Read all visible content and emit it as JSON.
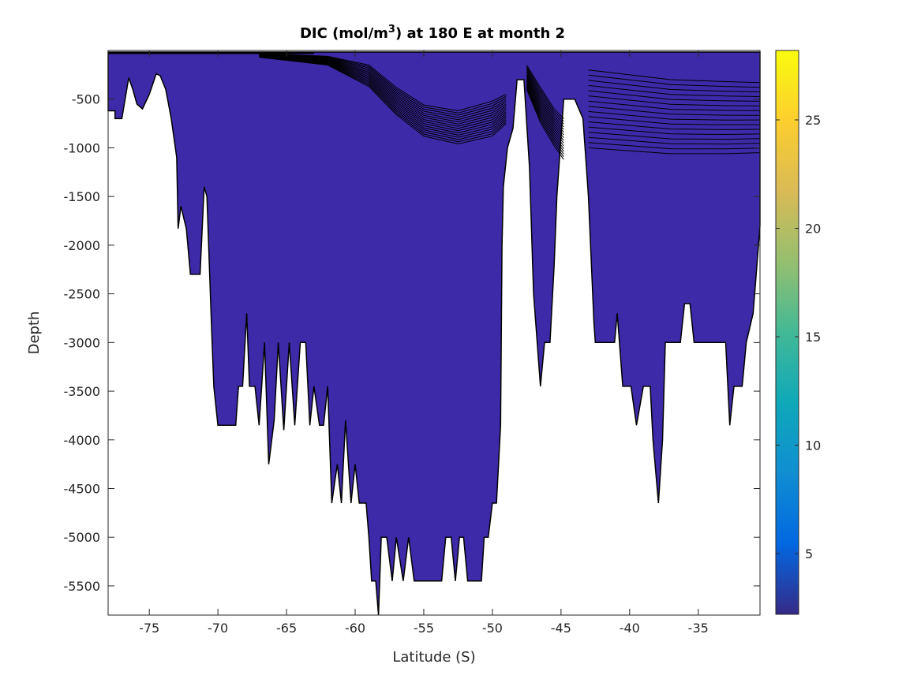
{
  "chart_data": {
    "type": "contour",
    "title": "DIC (mol/m³) at 180 E at month 2",
    "title_parts": {
      "before": "DIC (mol/m",
      "sup": "3",
      "after": ") at 180 E at month 2"
    },
    "xlabel": "Latitude (S)",
    "ylabel": "Depth",
    "xlim": [
      -78,
      -30.5
    ],
    "ylim": [
      -5800,
      0
    ],
    "xticks": [
      -75,
      -70,
      -65,
      -60,
      -55,
      -50,
      -45,
      -40,
      -35
    ],
    "xtick_labels": [
      "-75",
      "-70",
      "-65",
      "-60",
      "-55",
      "-50",
      "-45",
      "-40",
      "-35"
    ],
    "yticks": [
      -500,
      -1000,
      -1500,
      -2000,
      -2500,
      -3000,
      -3500,
      -4000,
      -4500,
      -5000,
      -5500
    ],
    "ytick_labels": [
      "-500",
      "-1000",
      "-1500",
      "-2000",
      "-2500",
      "-3000",
      "-3500",
      "-4000",
      "-4500",
      "-5000",
      "-5500"
    ],
    "fill_color": "#3d2aa8",
    "colorbar": {
      "clim": [
        2.2,
        28.2
      ],
      "ticks": [
        5,
        10,
        15,
        20,
        25
      ],
      "tick_labels": [
        "5",
        "10",
        "15",
        "20",
        "25"
      ],
      "colors": [
        "#352a87",
        "#0268e1",
        "#108ed2",
        "#0fa8b9",
        "#42b996",
        "#95bf6f",
        "#d9ba56",
        "#fcce2e",
        "#f9fb0e"
      ]
    },
    "bottom_profile": [
      [
        -78,
        -620
      ],
      [
        -77.5,
        -620
      ],
      [
        -77.5,
        -700
      ],
      [
        -77,
        -700
      ],
      [
        -76.5,
        -280
      ],
      [
        -76.2,
        -400
      ],
      [
        -75.9,
        -550
      ],
      [
        -75.5,
        -600
      ],
      [
        -75.0,
        -450
      ],
      [
        -74.5,
        -240
      ],
      [
        -74.2,
        -260
      ],
      [
        -73.8,
        -400
      ],
      [
        -73.4,
        -700
      ],
      [
        -73.0,
        -1100
      ],
      [
        -72.9,
        -1830
      ],
      [
        -72.7,
        -1600
      ],
      [
        -72.3,
        -1830
      ],
      [
        -72.0,
        -2300
      ],
      [
        -71.3,
        -2300
      ],
      [
        -71.0,
        -1400
      ],
      [
        -70.8,
        -1500
      ],
      [
        -70.5,
        -2700
      ],
      [
        -70.3,
        -3450
      ],
      [
        -70.0,
        -3850
      ],
      [
        -68.7,
        -3850
      ],
      [
        -68.5,
        -3450
      ],
      [
        -68.2,
        -3450
      ],
      [
        -67.9,
        -2700
      ],
      [
        -67.7,
        -3450
      ],
      [
        -67.3,
        -3450
      ],
      [
        -67.0,
        -3850
      ],
      [
        -66.6,
        -3000
      ],
      [
        -66.3,
        -4250
      ],
      [
        -65.9,
        -3800
      ],
      [
        -65.6,
        -3000
      ],
      [
        -65.2,
        -3900
      ],
      [
        -64.8,
        -3000
      ],
      [
        -64.4,
        -3850
      ],
      [
        -64.0,
        -3000
      ],
      [
        -63.6,
        -3000
      ],
      [
        -63.3,
        -3850
      ],
      [
        -63.0,
        -3450
      ],
      [
        -62.6,
        -3850
      ],
      [
        -62.3,
        -3850
      ],
      [
        -62.0,
        -3450
      ],
      [
        -61.7,
        -4650
      ],
      [
        -61.3,
        -4250
      ],
      [
        -61.0,
        -4650
      ],
      [
        -60.7,
        -3800
      ],
      [
        -60.3,
        -4650
      ],
      [
        -60.0,
        -4250
      ],
      [
        -59.7,
        -4650
      ],
      [
        -59.2,
        -4650
      ],
      [
        -59.0,
        -5000
      ],
      [
        -58.8,
        -5450
      ],
      [
        -58.5,
        -5450
      ],
      [
        -58.3,
        -5800
      ],
      [
        -58.1,
        -5000
      ],
      [
        -57.7,
        -5000
      ],
      [
        -57.3,
        -5450
      ],
      [
        -57.0,
        -5000
      ],
      [
        -56.5,
        -5450
      ],
      [
        -56.1,
        -5000
      ],
      [
        -55.7,
        -5450
      ],
      [
        -53.7,
        -5450
      ],
      [
        -53.4,
        -5000
      ],
      [
        -53.0,
        -5000
      ],
      [
        -52.7,
        -5450
      ],
      [
        -52.4,
        -5000
      ],
      [
        -52.1,
        -5000
      ],
      [
        -51.8,
        -5450
      ],
      [
        -50.8,
        -5450
      ],
      [
        -50.6,
        -5000
      ],
      [
        -50.3,
        -5000
      ],
      [
        -50.0,
        -4650
      ],
      [
        -49.7,
        -4650
      ],
      [
        -49.4,
        -3850
      ],
      [
        -49.3,
        -2000
      ],
      [
        -49.2,
        -1400
      ],
      [
        -48.9,
        -1000
      ],
      [
        -48.5,
        -800
      ],
      [
        -48.2,
        -300
      ],
      [
        -47.7,
        -300
      ],
      [
        -47.3,
        -1200
      ],
      [
        -47.0,
        -2500
      ],
      [
        -46.5,
        -3450
      ],
      [
        -46.2,
        -3000
      ],
      [
        -45.8,
        -3000
      ],
      [
        -45.5,
        -2200
      ],
      [
        -45.3,
        -1500
      ],
      [
        -44.8,
        -500
      ],
      [
        -44.0,
        -500
      ],
      [
        -43.4,
        -700
      ],
      [
        -43.0,
        -1500
      ],
      [
        -42.6,
        -2800
      ],
      [
        -42.5,
        -3000
      ],
      [
        -41.1,
        -3000
      ],
      [
        -40.9,
        -2700
      ],
      [
        -40.5,
        -3450
      ],
      [
        -39.9,
        -3450
      ],
      [
        -39.5,
        -3850
      ],
      [
        -39.0,
        -3450
      ],
      [
        -38.5,
        -3450
      ],
      [
        -38.3,
        -4000
      ],
      [
        -37.9,
        -4650
      ],
      [
        -37.6,
        -4000
      ],
      [
        -37.4,
        -3000
      ],
      [
        -36.3,
        -3000
      ],
      [
        -36.0,
        -2600
      ],
      [
        -35.6,
        -2600
      ],
      [
        -35.3,
        -3000
      ],
      [
        -33.0,
        -3000
      ],
      [
        -32.7,
        -3850
      ],
      [
        -32.4,
        -3450
      ],
      [
        -31.8,
        -3450
      ],
      [
        -31.5,
        -3000
      ],
      [
        -31.0,
        -2700
      ],
      [
        -30.5,
        -1800
      ]
    ],
    "contour_levels_count": 16
  }
}
